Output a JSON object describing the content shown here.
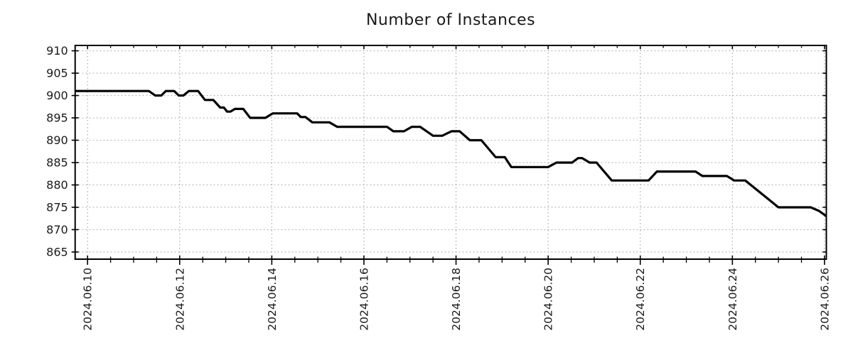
{
  "title": "Number of Instances",
  "chart_data": {
    "type": "line",
    "title": "Number of Instances",
    "xlabel": "",
    "ylabel": "",
    "legend": "none",
    "grid": "dotted gray lines at major ticks, both axes",
    "x_axis": {
      "unit": "date",
      "xlim_days": [
        9.73,
        26.04
      ],
      "major_tick_days": [
        10,
        12,
        14,
        16,
        18,
        20,
        22,
        24,
        26
      ],
      "major_tick_labels": [
        "2024.06.10",
        "2024.06.12",
        "2024.06.14",
        "2024.06.16",
        "2024.06.18",
        "2024.06.20",
        "2024.06.22",
        "2024.06.24",
        "2024.06.26"
      ],
      "minor_tick_step_days": 0.5,
      "label_rotation_deg": -90
    },
    "y_axis": {
      "ylim": [
        863.4,
        911.2
      ],
      "ticks": [
        865,
        870,
        875,
        880,
        885,
        890,
        895,
        900,
        905,
        910
      ],
      "tick_labels": [
        "865",
        "870",
        "875",
        "880",
        "885",
        "890",
        "895",
        "900",
        "905",
        "910"
      ]
    },
    "style": {
      "line_color": "#000000",
      "line_width": 3.2,
      "grid_color": "#a8a8a8",
      "border_color": "#000000",
      "text_color": "#1a1a1a",
      "background": "#ffffff"
    },
    "series": [
      {
        "name": "instances",
        "points_day_value": [
          [
            9.73,
            901
          ],
          [
            11.33,
            901
          ],
          [
            11.47,
            900
          ],
          [
            11.6,
            900
          ],
          [
            11.7,
            901
          ],
          [
            11.88,
            901
          ],
          [
            11.98,
            900
          ],
          [
            12.08,
            900
          ],
          [
            12.2,
            901
          ],
          [
            12.4,
            901
          ],
          [
            12.55,
            899
          ],
          [
            12.73,
            899
          ],
          [
            12.88,
            897.3
          ],
          [
            12.96,
            897.3
          ],
          [
            13.03,
            896.4
          ],
          [
            13.1,
            896.4
          ],
          [
            13.2,
            897
          ],
          [
            13.38,
            897
          ],
          [
            13.53,
            895
          ],
          [
            13.86,
            895
          ],
          [
            14.02,
            896
          ],
          [
            14.55,
            896
          ],
          [
            14.63,
            895.2
          ],
          [
            14.73,
            895.2
          ],
          [
            14.88,
            894
          ],
          [
            15.25,
            894
          ],
          [
            15.42,
            893
          ],
          [
            16.5,
            893
          ],
          [
            16.64,
            892
          ],
          [
            16.87,
            892
          ],
          [
            17.04,
            893
          ],
          [
            17.22,
            893
          ],
          [
            17.5,
            891
          ],
          [
            17.7,
            891
          ],
          [
            17.9,
            892
          ],
          [
            18.08,
            892
          ],
          [
            18.3,
            890
          ],
          [
            18.55,
            890
          ],
          [
            18.86,
            886.2
          ],
          [
            19.06,
            886.2
          ],
          [
            19.2,
            884
          ],
          [
            20.0,
            884
          ],
          [
            20.18,
            885
          ],
          [
            20.52,
            885
          ],
          [
            20.65,
            886
          ],
          [
            20.74,
            886
          ],
          [
            20.9,
            885
          ],
          [
            21.05,
            885
          ],
          [
            21.38,
            881
          ],
          [
            22.18,
            881
          ],
          [
            22.36,
            883
          ],
          [
            23.2,
            883
          ],
          [
            23.35,
            882
          ],
          [
            23.88,
            882
          ],
          [
            24.04,
            881
          ],
          [
            24.28,
            881
          ],
          [
            25.0,
            875
          ],
          [
            25.7,
            875
          ],
          [
            25.88,
            874.2
          ],
          [
            26.04,
            873
          ]
        ]
      }
    ]
  }
}
